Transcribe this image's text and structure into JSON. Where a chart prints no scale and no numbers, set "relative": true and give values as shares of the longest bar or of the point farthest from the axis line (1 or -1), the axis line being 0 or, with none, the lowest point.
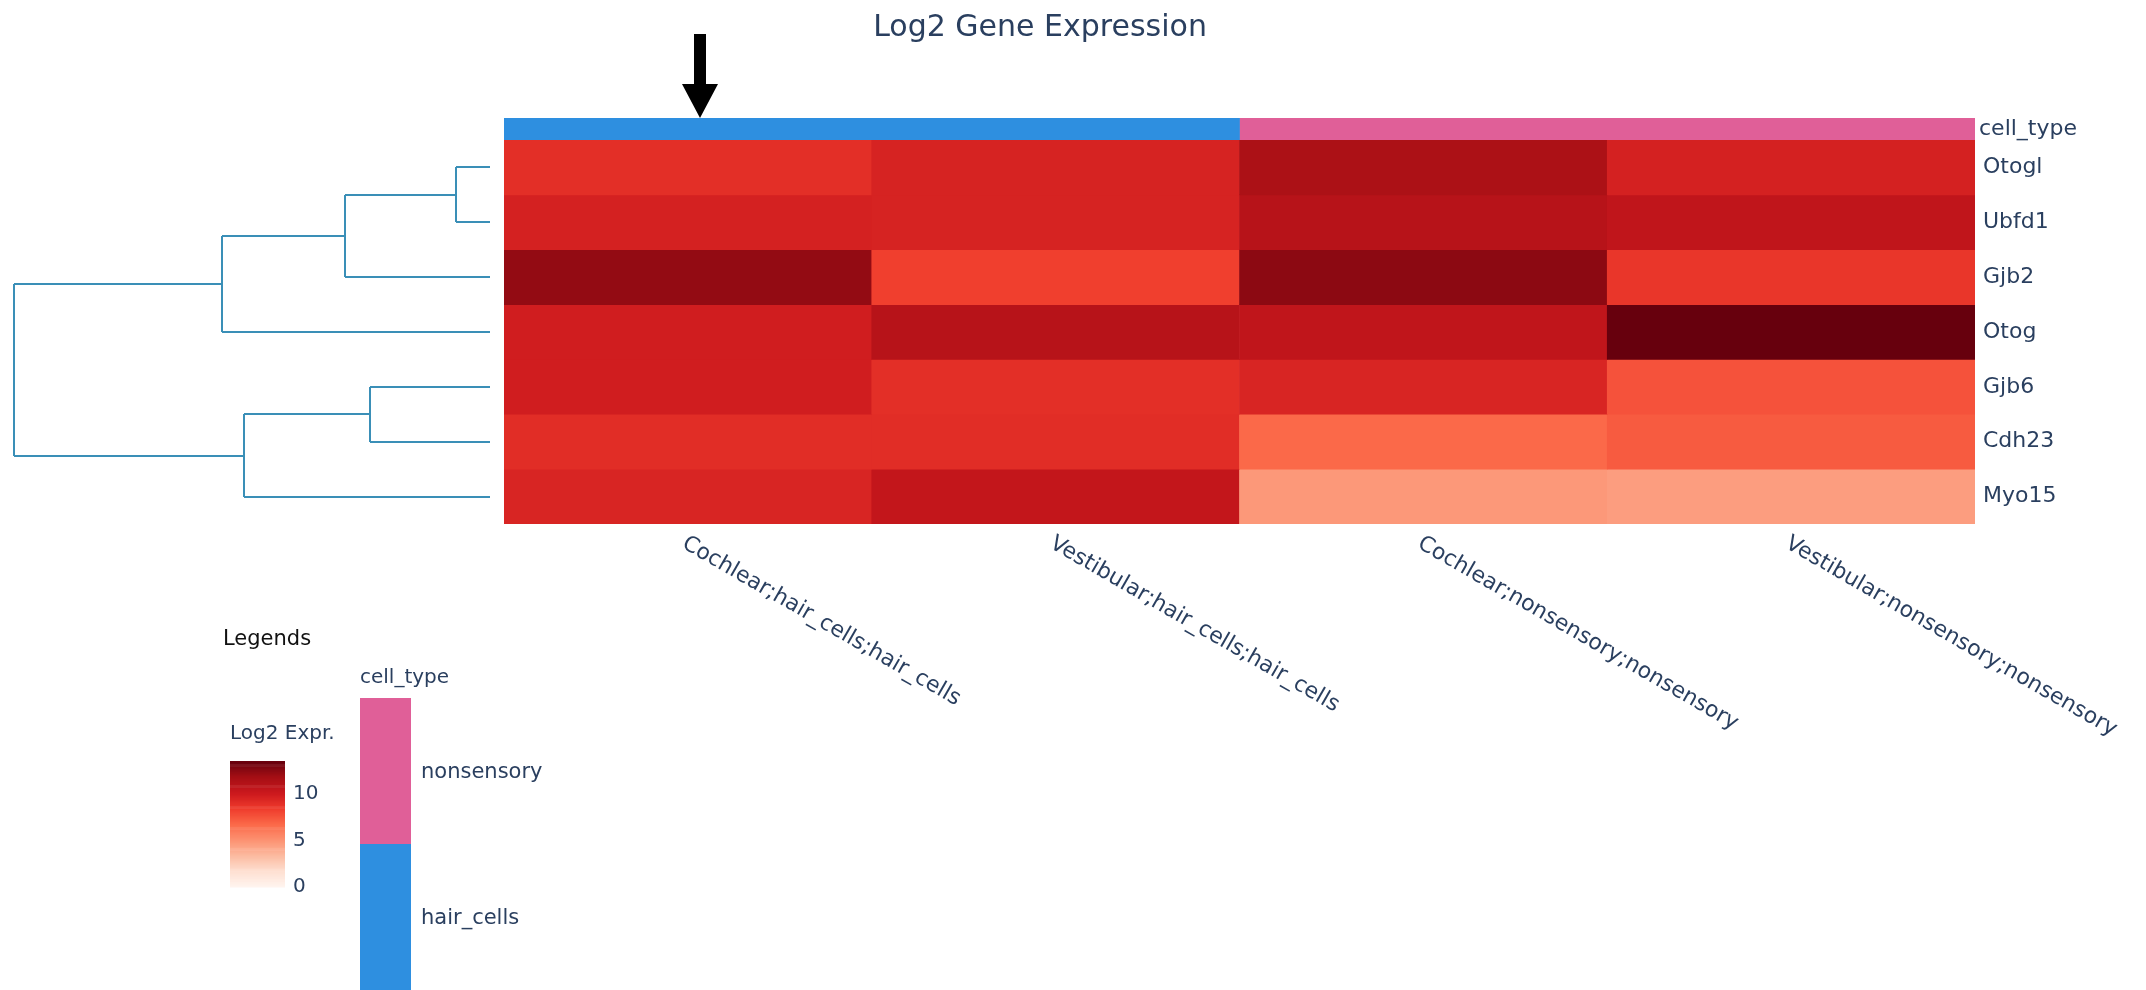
{
  "chart_data": [
    {
      "type": "heatmap",
      "title": "Log2 Gene Expression",
      "categories": [
        "Cochlear;hair_cells;hair_cells",
        "Vestibular;hair_cells;hair_cells",
        "Cochlear;nonsensory;nonsensory",
        "Vestibular;nonsensory;nonsensory"
      ],
      "y_categories": [
        "Otogl",
        "Ubfd1",
        "Gjb2",
        "Otog",
        "Gjb6",
        "Cdh23",
        "Myo15"
      ],
      "cells": [
        [
          9.0,
          9.6,
          11.5,
          9.7
        ],
        [
          9.7,
          9.6,
          11.0,
          10.6
        ],
        [
          12.3,
          8.3,
          12.5,
          8.7
        ],
        [
          9.9,
          11.0,
          10.6,
          13.5
        ],
        [
          9.9,
          9.0,
          9.5,
          7.6
        ],
        [
          9.1,
          9.1,
          6.8,
          7.3
        ],
        [
          9.5,
          10.5,
          4.8,
          4.6
        ]
      ],
      "clim": [
        0,
        13.5
      ],
      "cticks": [
        0,
        5,
        10
      ],
      "clabel": "Log2 Expr.",
      "annotations": [
        "Legends"
      ]
    },
    {
      "type": "bar",
      "stacked": true,
      "orientation": "horizontal",
      "relative": true,
      "categories": [
        "cell_type"
      ],
      "series": [
        {
          "name": "hair_cells",
          "color": "#2e8fe0",
          "values": [
            0.5
          ]
        },
        {
          "name": "nonsensory",
          "color": "#e05f98",
          "values": [
            0.5
          ]
        }
      ],
      "legend": "bottom left",
      "legend_title": "cell_type"
    }
  ]
}
